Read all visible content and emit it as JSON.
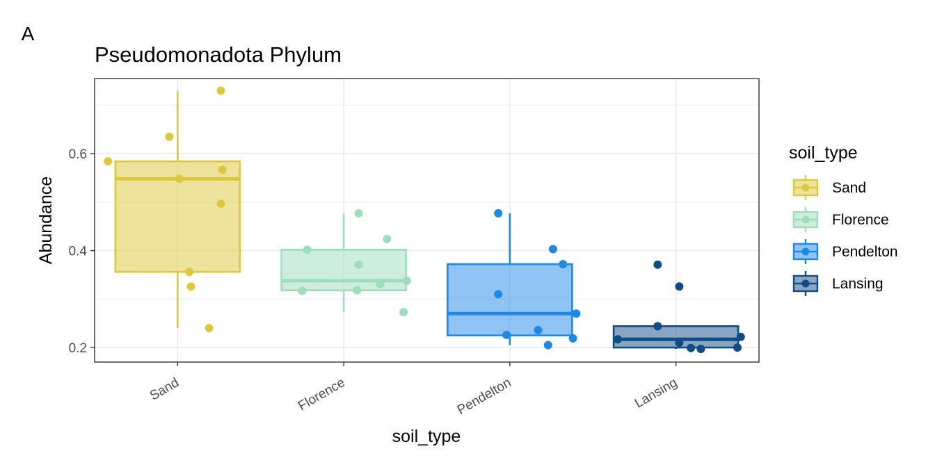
{
  "panel_tag": "A",
  "chart_data": {
    "type": "box",
    "title": "Pseudomonadota Phylum",
    "xlabel": "soil_type",
    "ylabel": "Abundance",
    "ylim": [
      0.17,
      0.755
    ],
    "yticks": [
      0.2,
      0.4,
      0.6
    ],
    "ytick_labels": [
      "0.2",
      "0.4",
      "0.6"
    ],
    "categories": [
      "Sand",
      "Florence",
      "Pendelton",
      "Lansing"
    ],
    "grid": true,
    "legend": {
      "title": "soil_type",
      "position": "right",
      "entries": [
        "Sand",
        "Florence",
        "Pendelton",
        "Lansing"
      ]
    },
    "colors": {
      "Sand": "#DCC83A",
      "Florence": "#9CDEBA",
      "Pendelton": "#1E88E5",
      "Lansing": "#114B84"
    },
    "boxes": [
      {
        "name": "Sand",
        "min": 0.24,
        "q1": 0.356,
        "median": 0.548,
        "q3": 0.584,
        "max": 0.73
      },
      {
        "name": "Florence",
        "min": 0.274,
        "q1": 0.318,
        "median": 0.338,
        "q3": 0.402,
        "max": 0.477
      },
      {
        "name": "Pendelton",
        "min": 0.205,
        "q1": 0.225,
        "median": 0.27,
        "q3": 0.372,
        "max": 0.477
      },
      {
        "name": "Lansing",
        "min": 0.197,
        "q1": 0.2,
        "median": 0.217,
        "q3": 0.244,
        "max": 0.244
      }
    ],
    "points": [
      {
        "name": "Sand",
        "values": [
          {
            "jitter": 0.26,
            "y": 0.73
          },
          {
            "jitter": -0.05,
            "y": 0.635
          },
          {
            "jitter": -0.42,
            "y": 0.584
          },
          {
            "jitter": 0.27,
            "y": 0.567
          },
          {
            "jitter": 0.01,
            "y": 0.548
          },
          {
            "jitter": 0.26,
            "y": 0.497
          },
          {
            "jitter": 0.07,
            "y": 0.356
          },
          {
            "jitter": 0.08,
            "y": 0.326
          },
          {
            "jitter": 0.19,
            "y": 0.24
          }
        ]
      },
      {
        "name": "Florence",
        "values": [
          {
            "jitter": 0.09,
            "y": 0.477
          },
          {
            "jitter": 0.26,
            "y": 0.424
          },
          {
            "jitter": -0.22,
            "y": 0.402
          },
          {
            "jitter": 0.09,
            "y": 0.371
          },
          {
            "jitter": 0.38,
            "y": 0.338
          },
          {
            "jitter": 0.22,
            "y": 0.331
          },
          {
            "jitter": -0.25,
            "y": 0.317
          },
          {
            "jitter": 0.08,
            "y": 0.318
          },
          {
            "jitter": 0.36,
            "y": 0.273
          }
        ]
      },
      {
        "name": "Pendelton",
        "values": [
          {
            "jitter": -0.07,
            "y": 0.477
          },
          {
            "jitter": 0.26,
            "y": 0.403
          },
          {
            "jitter": 0.32,
            "y": 0.372
          },
          {
            "jitter": -0.07,
            "y": 0.31
          },
          {
            "jitter": 0.4,
            "y": 0.27
          },
          {
            "jitter": 0.17,
            "y": 0.236
          },
          {
            "jitter": -0.02,
            "y": 0.226
          },
          {
            "jitter": 0.38,
            "y": 0.219
          },
          {
            "jitter": 0.23,
            "y": 0.205
          }
        ]
      },
      {
        "name": "Lansing",
        "values": [
          {
            "jitter": -0.11,
            "y": 0.371
          },
          {
            "jitter": 0.02,
            "y": 0.326
          },
          {
            "jitter": -0.11,
            "y": 0.244
          },
          {
            "jitter": 0.39,
            "y": 0.222
          },
          {
            "jitter": -0.35,
            "y": 0.217
          },
          {
            "jitter": 0.02,
            "y": 0.21
          },
          {
            "jitter": 0.37,
            "y": 0.2
          },
          {
            "jitter": 0.09,
            "y": 0.199
          },
          {
            "jitter": 0.15,
            "y": 0.197
          }
        ]
      }
    ]
  }
}
